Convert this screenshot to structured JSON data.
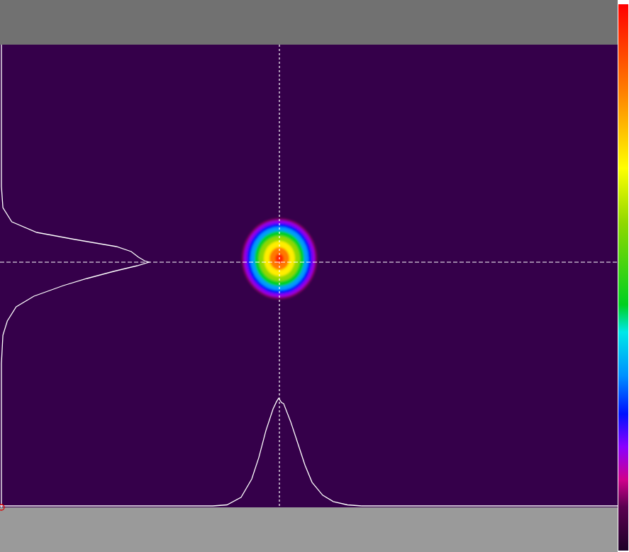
{
  "chart_data": {
    "type": "beam_profile",
    "tick_labels": false,
    "color": "#35004a",
    "xlim": [
      0,
      871
    ],
    "ylim": [
      0,
      653
    ],
    "center": {
      "x": 394,
      "y": 307
    },
    "spot": {
      "x": 394,
      "y": 302,
      "levels": [
        {
          "value": 0.1,
          "rx": 53,
          "ry": 57
        },
        {
          "value": 0.18,
          "rx": 50,
          "ry": 54
        },
        {
          "value": 0.25,
          "rx": 46,
          "ry": 50
        },
        {
          "value": 0.33,
          "rx": 41,
          "ry": 45
        },
        {
          "value": 0.45,
          "rx": 35,
          "ry": 39
        },
        {
          "value": 0.6,
          "rx": 29,
          "ry": 32
        },
        {
          "value": 0.72,
          "rx": 22,
          "ry": 25
        },
        {
          "value": 0.85,
          "rx": 14,
          "ry": 16
        },
        {
          "value": 0.95,
          "rx": 6,
          "ry": 7
        }
      ]
    },
    "profile_range": [
      0,
      1
    ],
    "x_profile": {
      "x": [
        0,
        300,
        320,
        340,
        355,
        365,
        375,
        385,
        390,
        393,
        397,
        400,
        410,
        420,
        430,
        440,
        455,
        470,
        490,
        510,
        871
      ],
      "values": [
        0,
        0,
        0.01,
        0.08,
        0.25,
        0.45,
        0.7,
        0.9,
        0.97,
        1.0,
        0.96,
        0.95,
        0.78,
        0.58,
        0.38,
        0.22,
        0.1,
        0.04,
        0.01,
        0,
        0
      ]
    },
    "y_profile": {
      "y": [
        0,
        200,
        230,
        250,
        265,
        275,
        285,
        292,
        300,
        305,
        307,
        312,
        320,
        330,
        340,
        355,
        370,
        390,
        410,
        450,
        653
      ],
      "values": [
        0,
        0,
        0.01,
        0.07,
        0.24,
        0.5,
        0.78,
        0.88,
        0.93,
        0.97,
        1.0,
        0.92,
        0.76,
        0.58,
        0.42,
        0.22,
        0.1,
        0.04,
        0.01,
        0,
        0
      ]
    },
    "colorbar": {
      "range": [
        0,
        1
      ],
      "stops": [
        {
          "value": 0,
          "color": "#1e0028"
        },
        {
          "value": 0.08,
          "color": "#5a0050"
        },
        {
          "value": 0.13,
          "color": "#d0008c"
        },
        {
          "value": 0.19,
          "color": "#8a00ff"
        },
        {
          "value": 0.25,
          "color": "#0010ff"
        },
        {
          "value": 0.32,
          "color": "#0090ff"
        },
        {
          "value": 0.4,
          "color": "#00e8e8"
        },
        {
          "value": 0.45,
          "color": "#00d020"
        },
        {
          "value": 0.6,
          "color": "#90d800"
        },
        {
          "value": 0.7,
          "color": "#ffff00"
        },
        {
          "value": 0.84,
          "color": "#ff8000"
        },
        {
          "value": 1,
          "color": "#ff0000"
        }
      ]
    }
  }
}
